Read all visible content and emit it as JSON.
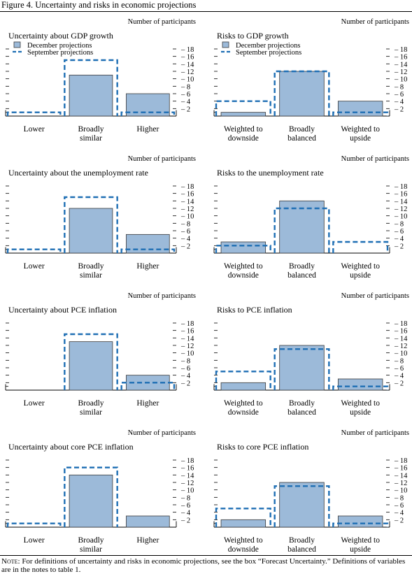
{
  "figure_title": "Figure 4. Uncertainty and risks in economic projections",
  "note": {
    "lead": "Note:",
    "text": " For definitions of uncertainty and risks in economic projections, see the box “Forecast Uncertainty.” Definitions of variables are in the notes to table 1."
  },
  "common": {
    "ylabel": "Number of participants",
    "legend": [
      "December projections",
      "September projections"
    ],
    "colors": {
      "bar_fill": "#9cbad9",
      "bar_stroke": "#3a3a3a",
      "dash": "#1f6fb4"
    }
  },
  "chart_data": [
    {
      "type": "bar",
      "title": "Uncertainty about GDP growth",
      "ylabel": "Number of participants",
      "categories": [
        "Lower",
        "Broadly\nsimilar",
        "Higher"
      ],
      "ylim": [
        0,
        18
      ],
      "yticks": [
        2,
        4,
        6,
        8,
        10,
        12,
        14,
        16,
        18
      ],
      "legend": true,
      "series": [
        {
          "name": "December projections",
          "values": [
            0,
            11,
            6
          ]
        },
        {
          "name": "September projections",
          "values": [
            1,
            15,
            1
          ]
        }
      ]
    },
    {
      "type": "bar",
      "title": "Risks to GDP growth",
      "ylabel": "Number of participants",
      "categories": [
        "Weighted to\ndownside",
        "Broadly\nbalanced",
        "Weighted to\nupside"
      ],
      "ylim": [
        0,
        18
      ],
      "yticks": [
        2,
        4,
        6,
        8,
        10,
        12,
        14,
        16,
        18
      ],
      "legend": true,
      "series": [
        {
          "name": "December projections",
          "values": [
            1,
            12,
            4
          ]
        },
        {
          "name": "September projections",
          "values": [
            4,
            12,
            1
          ]
        }
      ]
    },
    {
      "type": "bar",
      "title": "Uncertainty about the unemployment rate",
      "ylabel": "Number of participants",
      "categories": [
        "Lower",
        "Broadly\nsimilar",
        "Higher"
      ],
      "ylim": [
        0,
        18
      ],
      "yticks": [
        2,
        4,
        6,
        8,
        10,
        12,
        14,
        16,
        18
      ],
      "legend": false,
      "series": [
        {
          "name": "December projections",
          "values": [
            0,
            12,
            5
          ]
        },
        {
          "name": "September projections",
          "values": [
            1,
            15,
            1
          ]
        }
      ]
    },
    {
      "type": "bar",
      "title": "Risks to the unemployment rate",
      "ylabel": "Number of participants",
      "categories": [
        "Weighted to\ndownside",
        "Broadly\nbalanced",
        "Weighted to\nupside"
      ],
      "ylim": [
        0,
        18
      ],
      "yticks": [
        2,
        4,
        6,
        8,
        10,
        12,
        14,
        16,
        18
      ],
      "legend": false,
      "series": [
        {
          "name": "December projections",
          "values": [
            3,
            14,
            0
          ]
        },
        {
          "name": "September projections",
          "values": [
            2,
            12,
            3
          ]
        }
      ]
    },
    {
      "type": "bar",
      "title": "Uncertainty about PCE inflation",
      "ylabel": "Number of participants",
      "categories": [
        "Lower",
        "Broadly\nsimilar",
        "Higher"
      ],
      "ylim": [
        0,
        18
      ],
      "yticks": [
        2,
        4,
        6,
        8,
        10,
        12,
        14,
        16,
        18
      ],
      "legend": false,
      "series": [
        {
          "name": "December projections",
          "values": [
            0,
            13,
            4
          ]
        },
        {
          "name": "September projections",
          "values": [
            0,
            15,
            2
          ]
        }
      ]
    },
    {
      "type": "bar",
      "title": "Risks to PCE inflation",
      "ylabel": "Number of participants",
      "categories": [
        "Weighted to\ndownside",
        "Broadly\nbalanced",
        "Weighted to\nupside"
      ],
      "ylim": [
        0,
        18
      ],
      "yticks": [
        2,
        4,
        6,
        8,
        10,
        12,
        14,
        16,
        18
      ],
      "legend": false,
      "series": [
        {
          "name": "December projections",
          "values": [
            2,
            12,
            3
          ]
        },
        {
          "name": "September projections",
          "values": [
            5,
            11,
            1
          ]
        }
      ]
    },
    {
      "type": "bar",
      "title": "Uncertainty about core PCE inflation",
      "ylabel": "Number of participants",
      "categories": [
        "Lower",
        "Broadly\nsimilar",
        "Higher"
      ],
      "ylim": [
        0,
        18
      ],
      "yticks": [
        2,
        4,
        6,
        8,
        10,
        12,
        14,
        16,
        18
      ],
      "legend": false,
      "series": [
        {
          "name": "December projections",
          "values": [
            0,
            14,
            3
          ]
        },
        {
          "name": "September projections",
          "values": [
            1,
            16,
            0
          ]
        }
      ]
    },
    {
      "type": "bar",
      "title": "Risks to core PCE inflation",
      "ylabel": "Number of participants",
      "categories": [
        "Weighted to\ndownside",
        "Broadly\nbalanced",
        "Weighted to\nupside"
      ],
      "ylim": [
        0,
        18
      ],
      "yticks": [
        2,
        4,
        6,
        8,
        10,
        12,
        14,
        16,
        18
      ],
      "legend": false,
      "series": [
        {
          "name": "December projections",
          "values": [
            2,
            12,
            3
          ]
        },
        {
          "name": "September projections",
          "values": [
            5,
            11,
            1
          ]
        }
      ]
    }
  ]
}
